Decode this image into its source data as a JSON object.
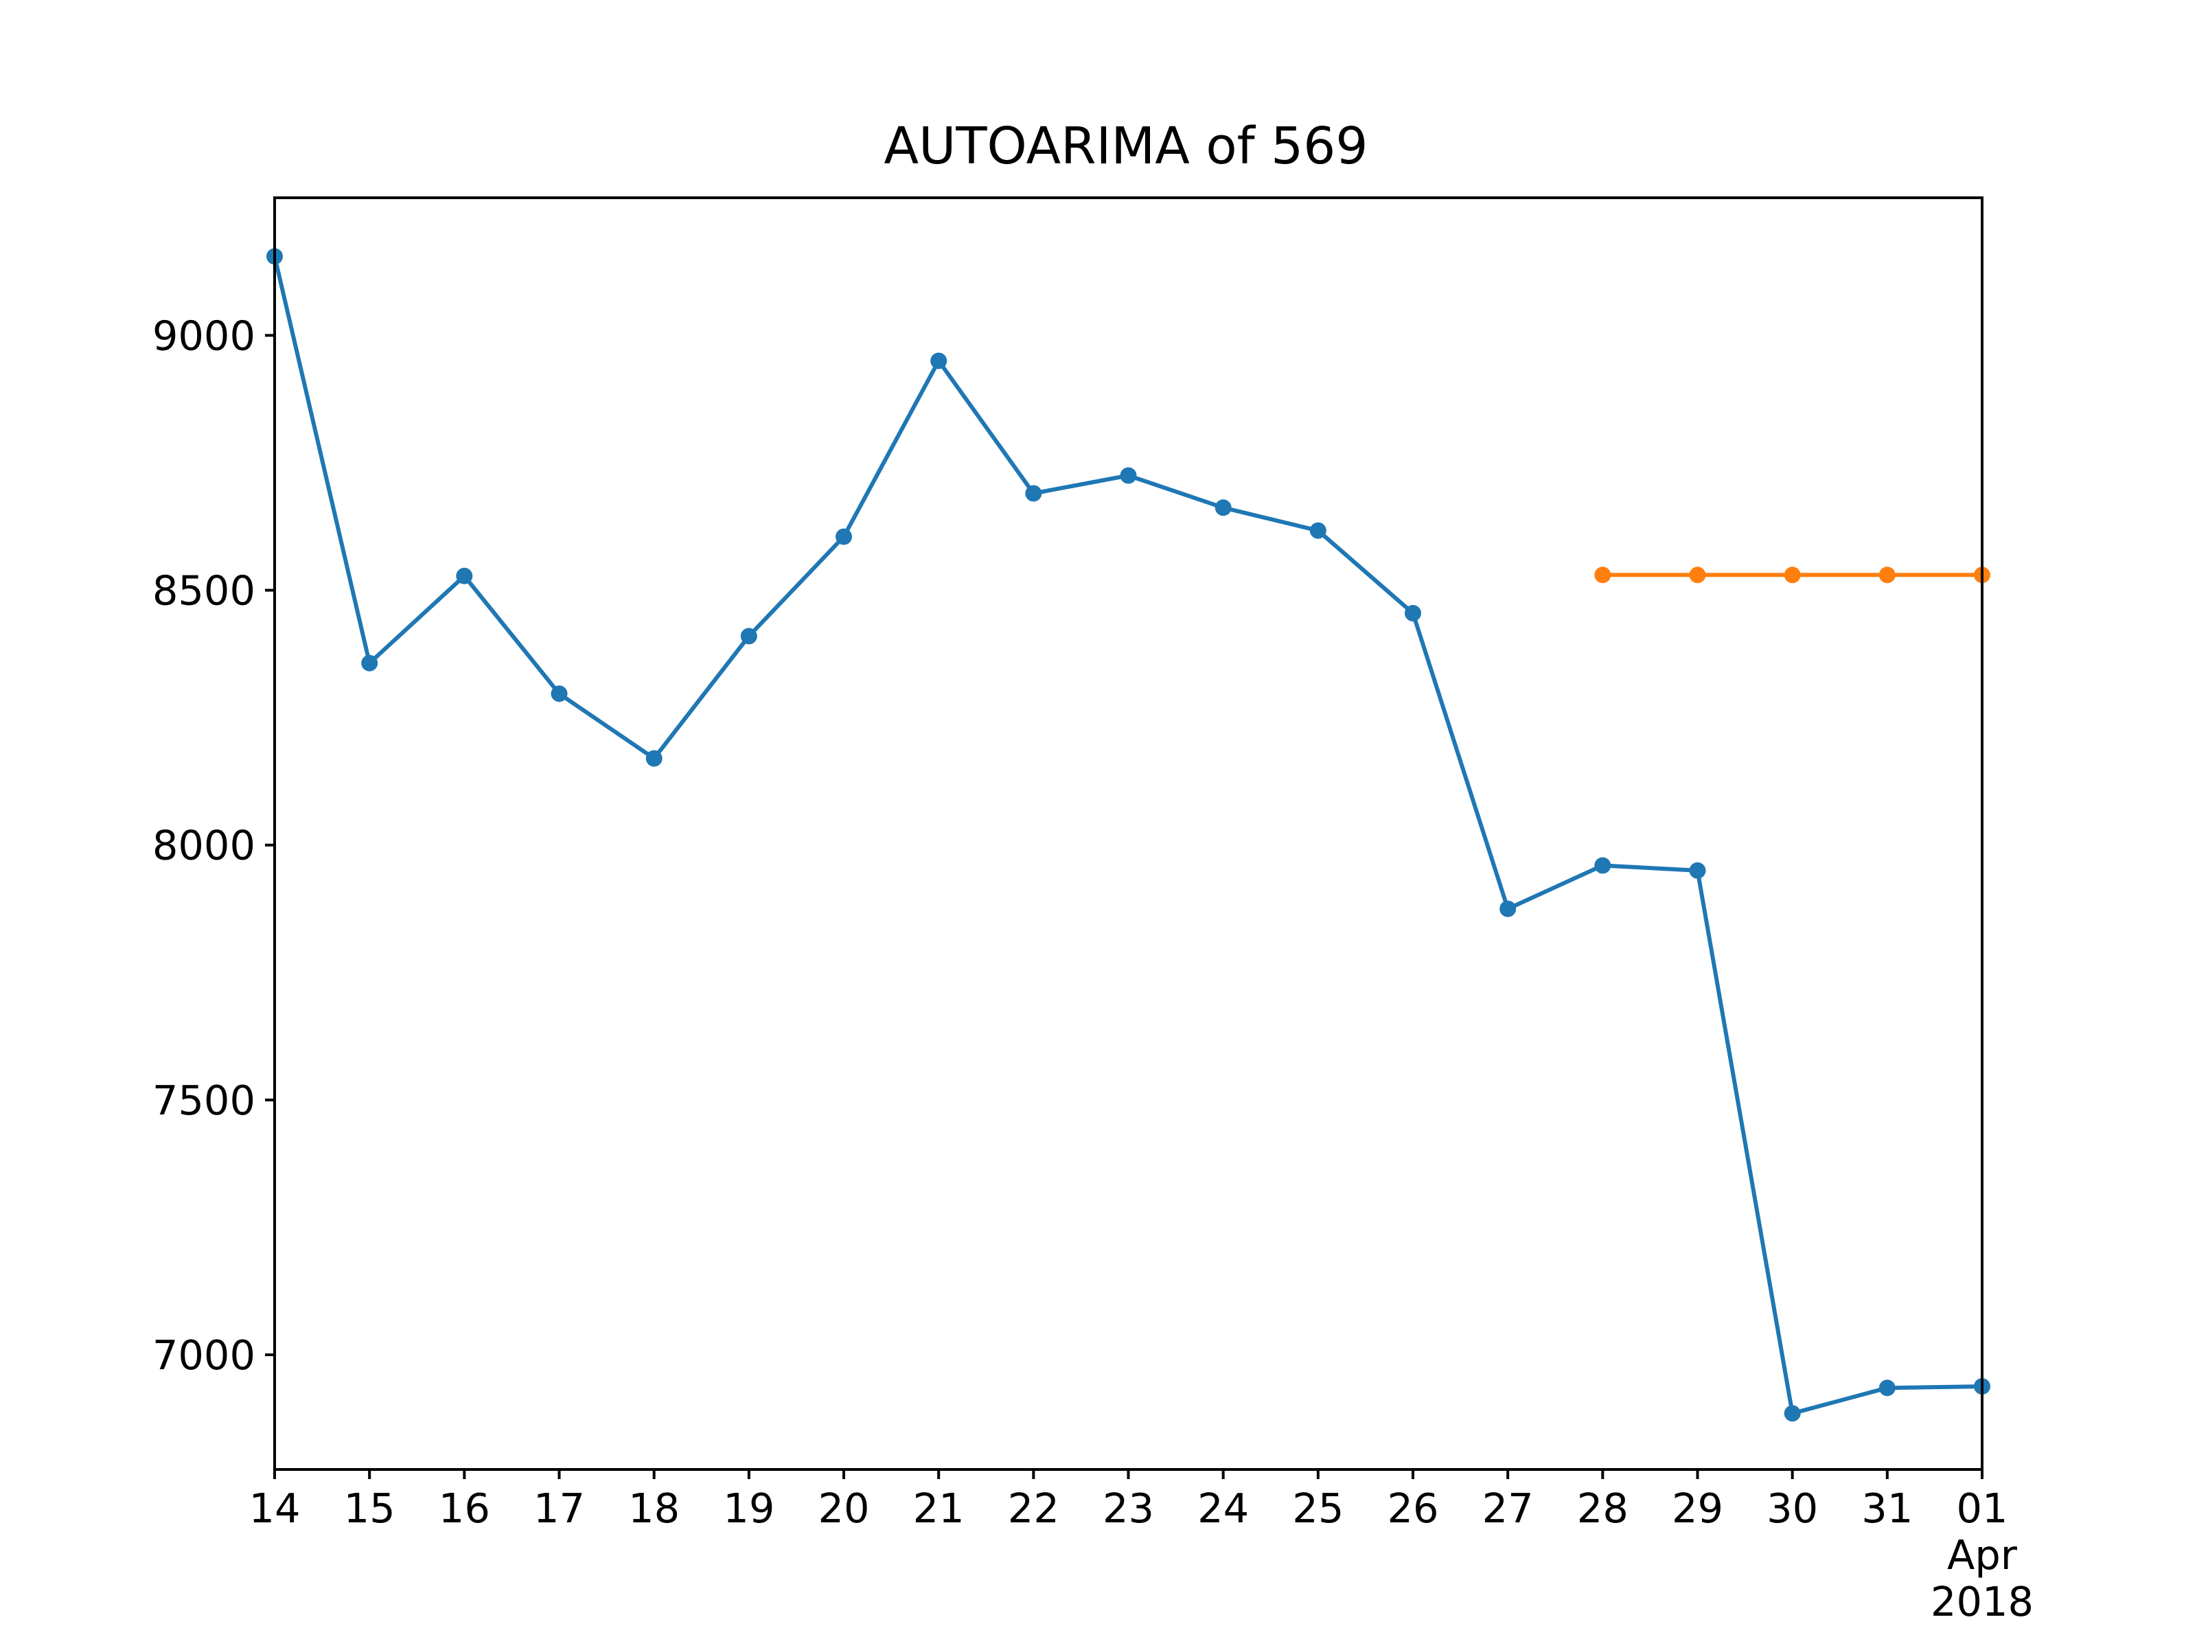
{
  "chart_data": {
    "type": "line",
    "title": "AUTOARIMA of 569",
    "xlabel": "",
    "ylabel": "",
    "x": [
      "2018-03-14",
      "2018-03-15",
      "2018-03-16",
      "2018-03-17",
      "2018-03-18",
      "2018-03-19",
      "2018-03-20",
      "2018-03-21",
      "2018-03-22",
      "2018-03-23",
      "2018-03-24",
      "2018-03-25",
      "2018-03-26",
      "2018-03-27",
      "2018-03-28",
      "2018-03-29",
      "2018-03-30",
      "2018-03-31",
      "2018-04-01"
    ],
    "x_tick_labels": [
      {
        "date": "2018-03-14",
        "day": "14"
      },
      {
        "date": "2018-03-15",
        "day": "15"
      },
      {
        "date": "2018-03-16",
        "day": "16"
      },
      {
        "date": "2018-03-17",
        "day": "17"
      },
      {
        "date": "2018-03-18",
        "day": "18"
      },
      {
        "date": "2018-03-19",
        "day": "19"
      },
      {
        "date": "2018-03-20",
        "day": "20"
      },
      {
        "date": "2018-03-21",
        "day": "21"
      },
      {
        "date": "2018-03-22",
        "day": "22"
      },
      {
        "date": "2018-03-23",
        "day": "23"
      },
      {
        "date": "2018-03-24",
        "day": "24"
      },
      {
        "date": "2018-03-25",
        "day": "25"
      },
      {
        "date": "2018-03-26",
        "day": "26"
      },
      {
        "date": "2018-03-27",
        "day": "27"
      },
      {
        "date": "2018-03-28",
        "day": "28"
      },
      {
        "date": "2018-03-29",
        "day": "29"
      },
      {
        "date": "2018-03-30",
        "day": "30"
      },
      {
        "date": "2018-03-31",
        "day": "31"
      },
      {
        "date": "2018-04-01",
        "day": "01",
        "month": "Apr",
        "year": "2018"
      }
    ],
    "y_ticks": [
      7000,
      7500,
      8000,
      8500,
      9000
    ],
    "ylim": [
      6775,
      9270
    ],
    "xlim": [
      "2018-03-14",
      "2018-04-01"
    ],
    "grid": false,
    "legend": "none",
    "series": [
      {
        "color": "#1f77b4",
        "points": [
          {
            "x": "2018-03-14",
            "y": 9155
          },
          {
            "x": "2018-03-15",
            "y": 8357
          },
          {
            "x": "2018-03-16",
            "y": 8528
          },
          {
            "x": "2018-03-17",
            "y": 8297
          },
          {
            "x": "2018-03-18",
            "y": 8170
          },
          {
            "x": "2018-03-19",
            "y": 8410
          },
          {
            "x": "2018-03-20",
            "y": 8605
          },
          {
            "x": "2018-03-21",
            "y": 8950
          },
          {
            "x": "2018-03-22",
            "y": 8690
          },
          {
            "x": "2018-03-23",
            "y": 8725
          },
          {
            "x": "2018-03-24",
            "y": 8662
          },
          {
            "x": "2018-03-25",
            "y": 8617
          },
          {
            "x": "2018-03-26",
            "y": 8455
          },
          {
            "x": "2018-03-27",
            "y": 7875
          },
          {
            "x": "2018-03-28",
            "y": 7960
          },
          {
            "x": "2018-03-29",
            "y": 7950
          },
          {
            "x": "2018-03-30",
            "y": 6885
          },
          {
            "x": "2018-03-31",
            "y": 6935
          },
          {
            "x": "2018-04-01",
            "y": 6938
          }
        ]
      },
      {
        "color": "#ff7f0e",
        "points": [
          {
            "x": "2018-03-28",
            "y": 8530
          },
          {
            "x": "2018-03-29",
            "y": 8530
          },
          {
            "x": "2018-03-30",
            "y": 8530
          },
          {
            "x": "2018-03-31",
            "y": 8530
          },
          {
            "x": "2018-04-01",
            "y": 8530
          }
        ]
      }
    ]
  }
}
